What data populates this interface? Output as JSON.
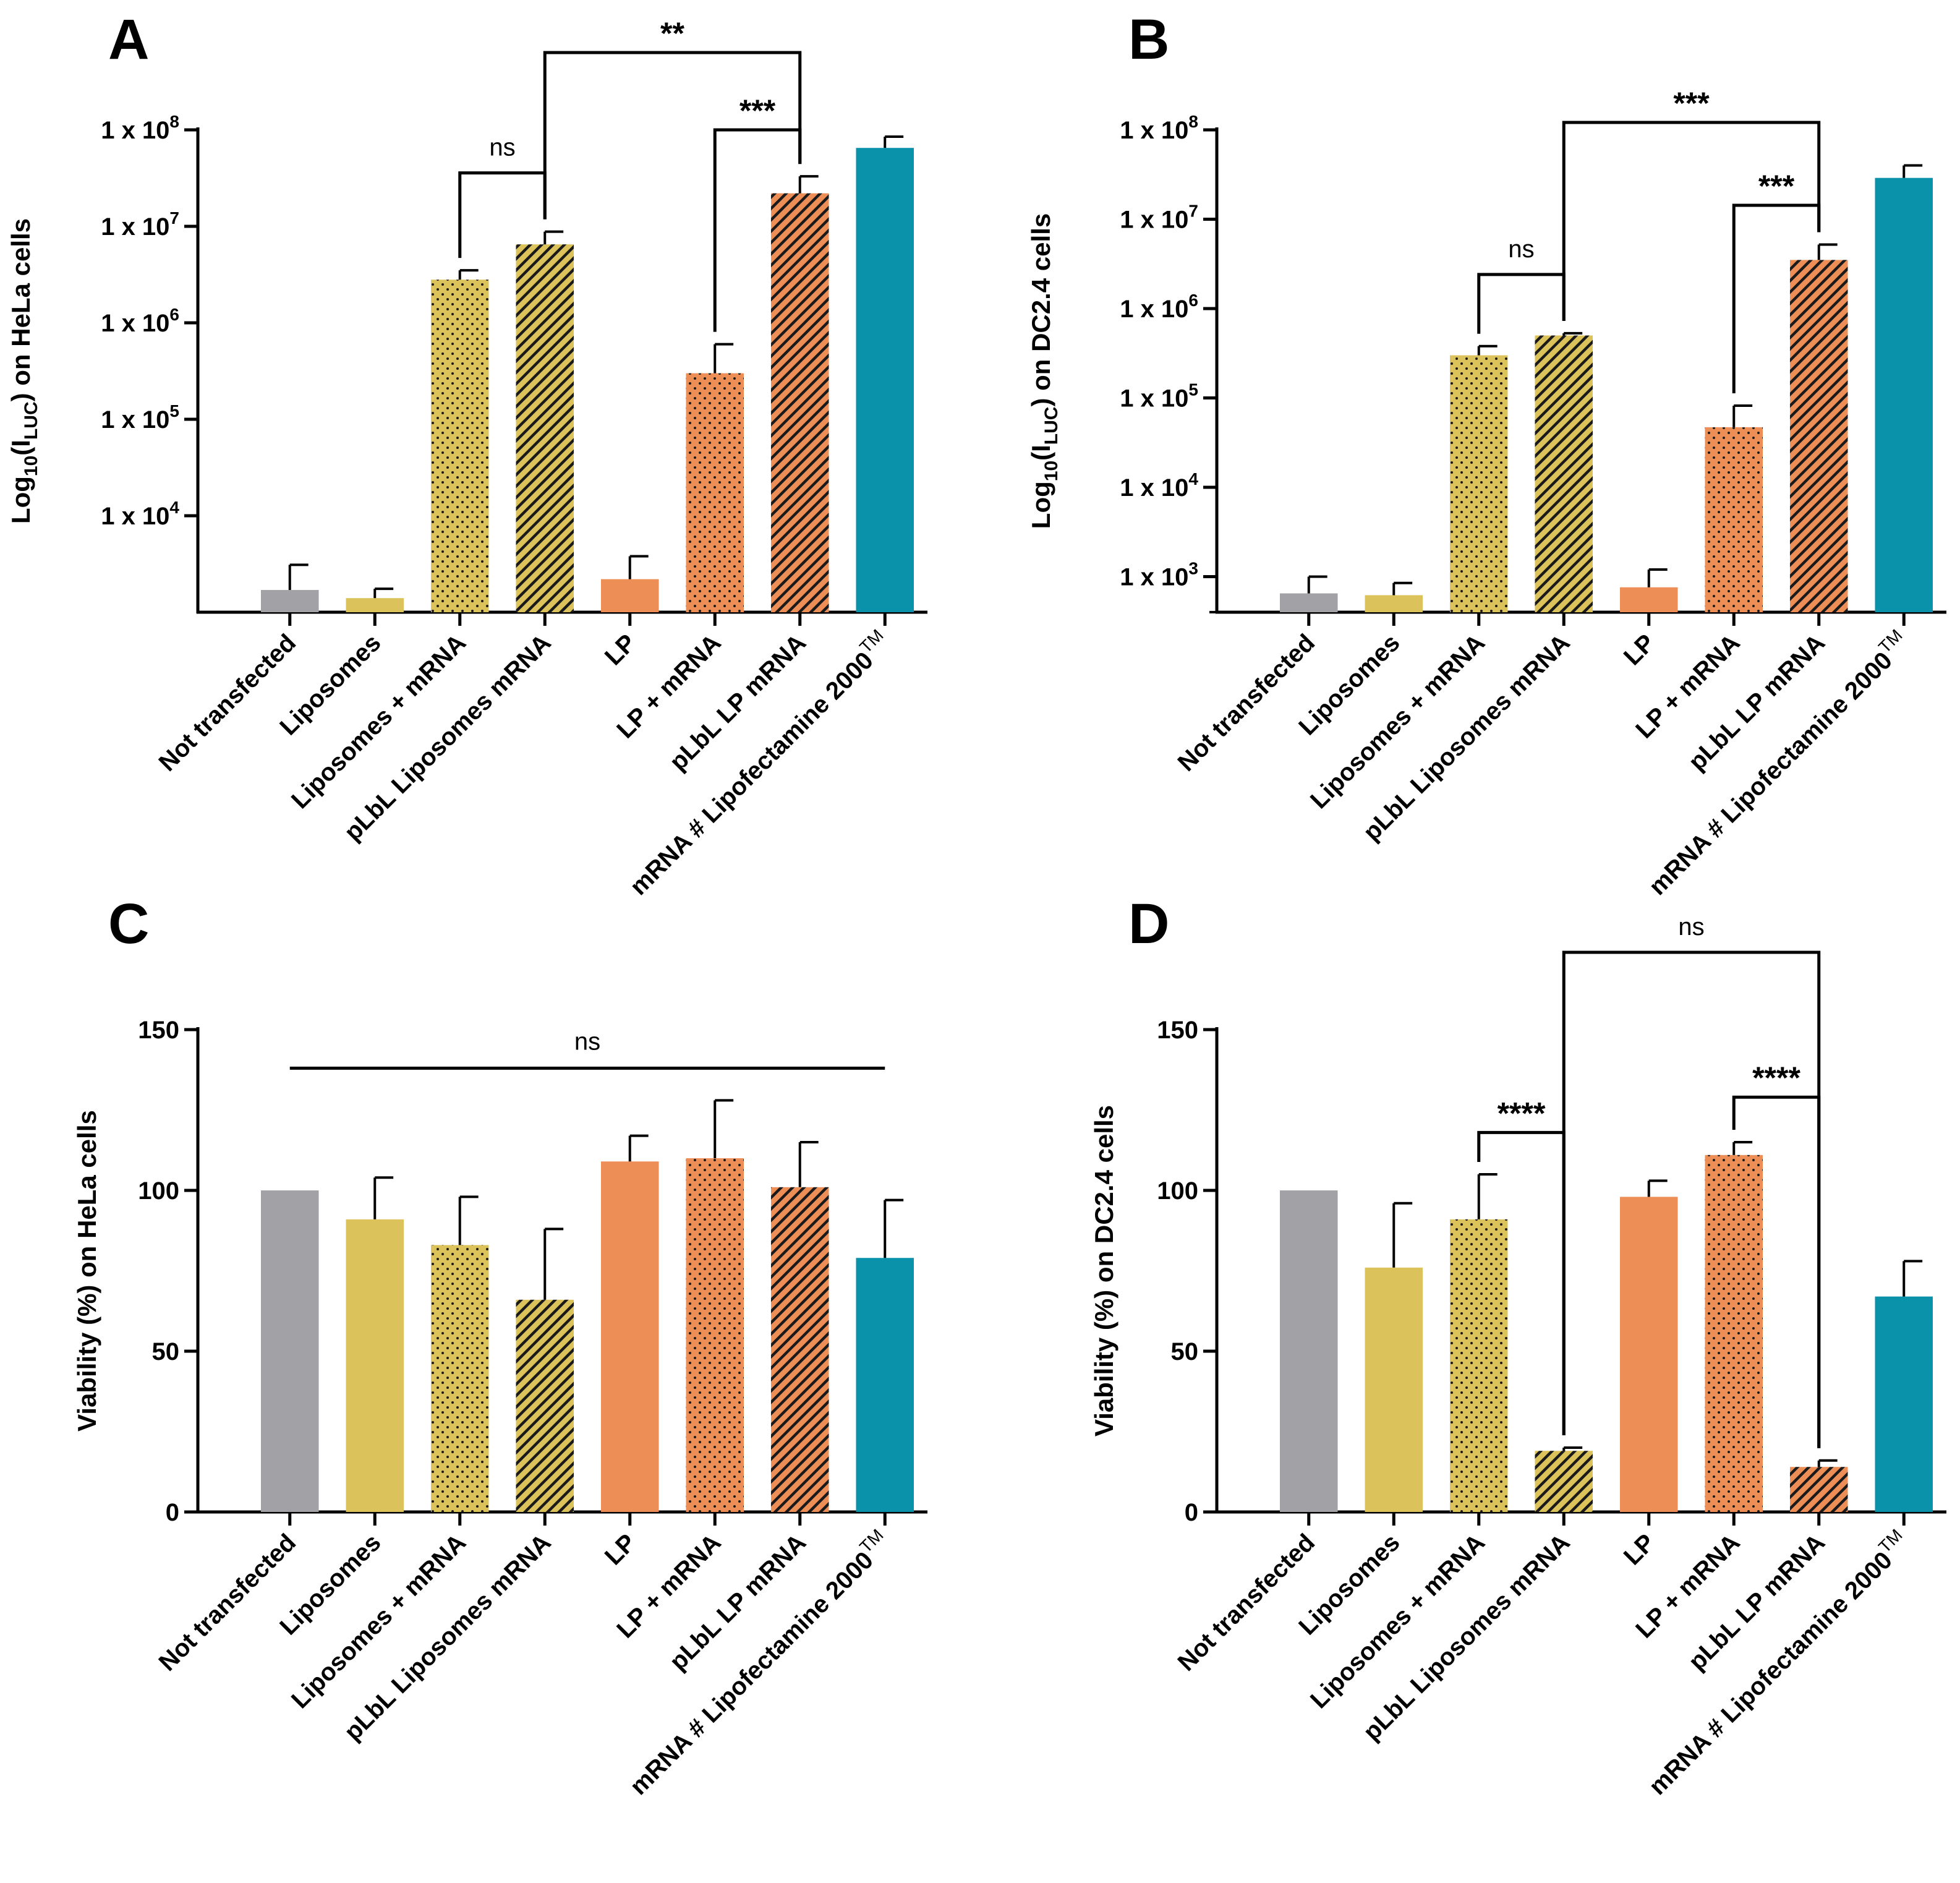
{
  "figure": {
    "colors": {
      "grey": "#a2a1a6",
      "yellow": "#dcc25a",
      "orange": "#ee8e57",
      "teal": "#0b92ab",
      "hatch": "#1a1a1a",
      "axis": "#000000"
    }
  },
  "chart_data": [
    {
      "panel": "A",
      "type": "bar",
      "yscale": "log",
      "ylabel_parts": {
        "pre": "Log",
        "sub1": "10",
        "mid": "(I",
        "sub2": "LUC",
        "post": ") on HeLa cells"
      },
      "ylim": [
        1000,
        100000000
      ],
      "yticks": [
        {
          "value": 10000,
          "base": "1 x 10",
          "exp": "4"
        },
        {
          "value": 100000,
          "base": "1 x 10",
          "exp": "5"
        },
        {
          "value": 1000000,
          "base": "1 x 10",
          "exp": "6"
        },
        {
          "value": 10000000,
          "base": "1 x 10",
          "exp": "7"
        },
        {
          "value": 100000000,
          "base": "1 x 10",
          "exp": "8"
        }
      ],
      "categories": [
        "Not transfected",
        "Liposomes",
        "Liposomes + mRNA",
        "pLbL Liposomes mRNA",
        "LP",
        "LP + mRNA",
        "pLbL LP mRNA",
        "mRNA # Lipofectamine 2000"
      ],
      "last_category_superscript": "TM",
      "fills": [
        "grey",
        "yellow",
        "yellow-dots",
        "yellow-hatch",
        "orange",
        "orange-dots",
        "orange-hatch",
        "teal"
      ],
      "values": [
        1700,
        1400,
        2800000,
        6500000,
        2200,
        300000,
        22000000,
        65000000
      ],
      "errors": [
        3100,
        1750,
        3500000,
        8800000,
        3800,
        600000,
        33000000,
        85000000
      ],
      "significance": [
        {
          "from": 2,
          "to": 3,
          "level": 1,
          "label": "ns"
        },
        {
          "from": 5,
          "to": 6,
          "level": 2,
          "label": "***"
        },
        {
          "from": 3,
          "to": 6,
          "level": 3,
          "label": "**"
        }
      ]
    },
    {
      "panel": "B",
      "type": "bar",
      "yscale": "log",
      "ylabel_parts": {
        "pre": "Log",
        "sub1": "10",
        "mid": "(I",
        "sub2": "LUC",
        "post": ") on DC2.4 cells"
      },
      "ylim": [
        400,
        100000000
      ],
      "yticks": [
        {
          "value": 1000,
          "base": "1 x 10",
          "exp": "3"
        },
        {
          "value": 10000,
          "base": "1 x 10",
          "exp": "4"
        },
        {
          "value": 100000,
          "base": "1 x 10",
          "exp": "5"
        },
        {
          "value": 1000000,
          "base": "1 x 10",
          "exp": "6"
        },
        {
          "value": 10000000,
          "base": "1 x 10",
          "exp": "7"
        },
        {
          "value": 100000000,
          "base": "1 x 10",
          "exp": "8"
        }
      ],
      "categories": [
        "Not transfected",
        "Liposomes",
        "Liposomes + mRNA",
        "pLbL Liposomes mRNA",
        "LP",
        "LP + mRNA",
        "pLbL LP mRNA",
        "mRNA # Lipofectamine 2000"
      ],
      "last_category_superscript": "TM",
      "fills": [
        "grey",
        "yellow",
        "yellow-dots",
        "yellow-hatch",
        "orange",
        "orange-dots",
        "orange-hatch",
        "teal"
      ],
      "values": [
        650,
        620,
        300000,
        500000,
        760,
        47000,
        3500000,
        29000000
      ],
      "errors": [
        1000,
        850,
        380000,
        530000,
        1200,
        82000,
        5200000,
        40000000
      ],
      "significance": [
        {
          "from": 2,
          "to": 3,
          "level": 1,
          "label": "ns"
        },
        {
          "from": 5,
          "to": 6,
          "level": 2,
          "label": "***"
        },
        {
          "from": 3,
          "to": 6,
          "level": 3,
          "label": "***"
        }
      ]
    },
    {
      "panel": "C",
      "type": "bar",
      "yscale": "linear",
      "ylabel": "Viability (%) on HeLa cells",
      "ylim": [
        0,
        150
      ],
      "yticks": [
        {
          "value": 0,
          "label": "0"
        },
        {
          "value": 50,
          "label": "50"
        },
        {
          "value": 100,
          "label": "100"
        },
        {
          "value": 150,
          "label": "150"
        }
      ],
      "categories": [
        "Not transfected",
        "Liposomes",
        "Liposomes + mRNA",
        "pLbL Liposomes mRNA",
        "LP",
        "LP + mRNA",
        "pLbL LP mRNA",
        "mRNA # Lipofectamine 2000"
      ],
      "last_category_superscript": "TM",
      "fills": [
        "grey",
        "yellow",
        "yellow-dots",
        "yellow-hatch",
        "orange",
        "orange-dots",
        "orange-hatch",
        "teal"
      ],
      "values": [
        100,
        91,
        83,
        66,
        109,
        110,
        101,
        79
      ],
      "errors": [
        100,
        104,
        98,
        88,
        117,
        128,
        115,
        97
      ],
      "significance_line": {
        "from": 0,
        "to": 7,
        "value": 138,
        "label": "ns"
      }
    },
    {
      "panel": "D",
      "type": "bar",
      "yscale": "linear",
      "ylabel": "Viability (%) on DC2.4 cells",
      "ylim": [
        0,
        150
      ],
      "yticks": [
        {
          "value": 0,
          "label": "0"
        },
        {
          "value": 50,
          "label": "50"
        },
        {
          "value": 100,
          "label": "100"
        },
        {
          "value": 150,
          "label": "150"
        }
      ],
      "categories": [
        "Not transfected",
        "Liposomes",
        "Liposomes + mRNA",
        "pLbL Liposomes mRNA",
        "LP",
        "LP + mRNA",
        "pLbL LP mRNA",
        "mRNA # Lipofectamine 2000"
      ],
      "last_category_superscript": "TM",
      "fills": [
        "grey",
        "yellow",
        "yellow-dots",
        "yellow-hatch",
        "orange",
        "orange-dots",
        "orange-hatch",
        "teal"
      ],
      "values": [
        100,
        76,
        91,
        19,
        98,
        111,
        14,
        67
      ],
      "errors": [
        100,
        96,
        105,
        20,
        103,
        115,
        16,
        78
      ],
      "significance": [
        {
          "from": 2,
          "to": 3,
          "level": 1,
          "label": "****"
        },
        {
          "from": 5,
          "to": 6,
          "level": 2,
          "label": "****"
        },
        {
          "from": 3,
          "to": 6,
          "level": 3,
          "label": "ns"
        }
      ]
    }
  ]
}
